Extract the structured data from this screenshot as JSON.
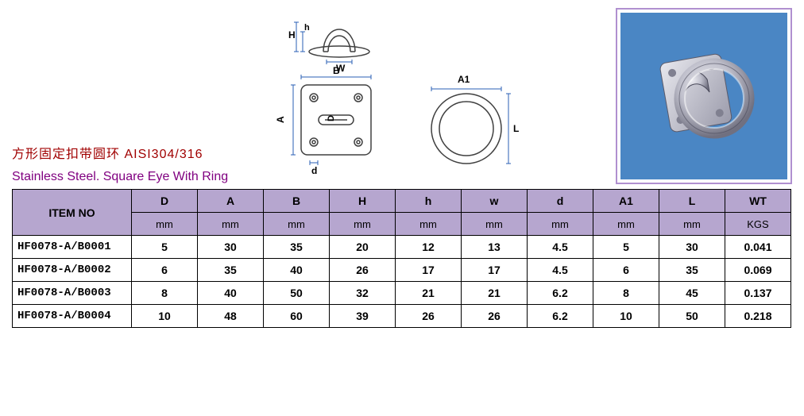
{
  "titles": {
    "cn": "方形固定扣带圆环 AISI304/316",
    "en": "Stainless Steel. Square Eye With Ring"
  },
  "diagram": {
    "labels": {
      "H": "H",
      "h": "h",
      "W": "W",
      "B": "B",
      "A": "A",
      "D": "D",
      "d": "d",
      "A1": "A1",
      "L": "L"
    },
    "stroke": "#404040",
    "dim_color": "#2a5fb4",
    "fill": "#ffffff"
  },
  "photo": {
    "bg": "#4a86c4",
    "metal_light": "#e8e8ec",
    "metal_mid": "#b8b8c2",
    "metal_dark": "#606070",
    "border": "#b090d0"
  },
  "table": {
    "columns": [
      {
        "key": "item",
        "label": "ITEM NO",
        "unit": ""
      },
      {
        "key": "D",
        "label": "D",
        "unit": "mm"
      },
      {
        "key": "A",
        "label": "A",
        "unit": "mm"
      },
      {
        "key": "B",
        "label": "B",
        "unit": "mm"
      },
      {
        "key": "H",
        "label": "H",
        "unit": "mm"
      },
      {
        "key": "h",
        "label": "h",
        "unit": "mm"
      },
      {
        "key": "w",
        "label": "w",
        "unit": "mm"
      },
      {
        "key": "d",
        "label": "d",
        "unit": "mm"
      },
      {
        "key": "A1",
        "label": "A1",
        "unit": "mm"
      },
      {
        "key": "L",
        "label": "L",
        "unit": "mm"
      },
      {
        "key": "WT",
        "label": "WT",
        "unit": "KGS"
      }
    ],
    "rows": [
      {
        "item": "HF0078-A/B0001",
        "D": "5",
        "A": "30",
        "B": "35",
        "H": "20",
        "h": "12",
        "w": "13",
        "d": "4.5",
        "A1": "5",
        "L": "30",
        "WT": "0.041"
      },
      {
        "item": "HF0078-A/B0002",
        "D": "6",
        "A": "35",
        "B": "40",
        "H": "26",
        "h": "17",
        "w": "17",
        "d": "4.5",
        "A1": "6",
        "L": "35",
        "WT": "0.069"
      },
      {
        "item": "HF0078-A/B0003",
        "D": "8",
        "A": "40",
        "B": "50",
        "H": "32",
        "h": "21",
        "w": "21",
        "d": "6.2",
        "A1": "8",
        "L": "45",
        "WT": "0.137"
      },
      {
        "item": "HF0078-A/B0004",
        "D": "10",
        "A": "48",
        "B": "60",
        "H": "39",
        "h": "26",
        "w": "26",
        "d": "6.2",
        "A1": "10",
        "L": "50",
        "WT": "0.218"
      }
    ],
    "header_bg": "#b6a6cf",
    "border_color": "#000000"
  }
}
